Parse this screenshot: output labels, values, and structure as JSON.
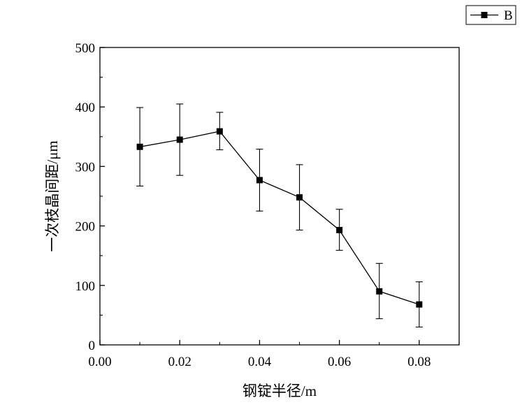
{
  "chart_data": {
    "type": "line",
    "xlabel": "钢锭半径/m",
    "ylabel": "一次枝晶间距/μm",
    "xlim": [
      0.0,
      0.09
    ],
    "ylim": [
      0,
      500
    ],
    "x_ticks": [
      "0.00",
      "0.02",
      "0.04",
      "0.06",
      "0.08"
    ],
    "y_ticks": [
      "0",
      "100",
      "200",
      "300",
      "400",
      "500"
    ],
    "grid": false,
    "legend_position": "top-right, outside plot",
    "series": [
      {
        "name": "B",
        "color": "#000000",
        "marker": "square",
        "x": [
          0.01,
          0.02,
          0.03,
          0.04,
          0.05,
          0.06,
          0.07,
          0.08
        ],
        "y": [
          333,
          345,
          359,
          277,
          248,
          193,
          90,
          68
        ],
        "error_upper": [
          399,
          405,
          391,
          329,
          303,
          228,
          137,
          106
        ],
        "error_lower": [
          267,
          285,
          328,
          225,
          193,
          159,
          44,
          30
        ]
      }
    ]
  }
}
